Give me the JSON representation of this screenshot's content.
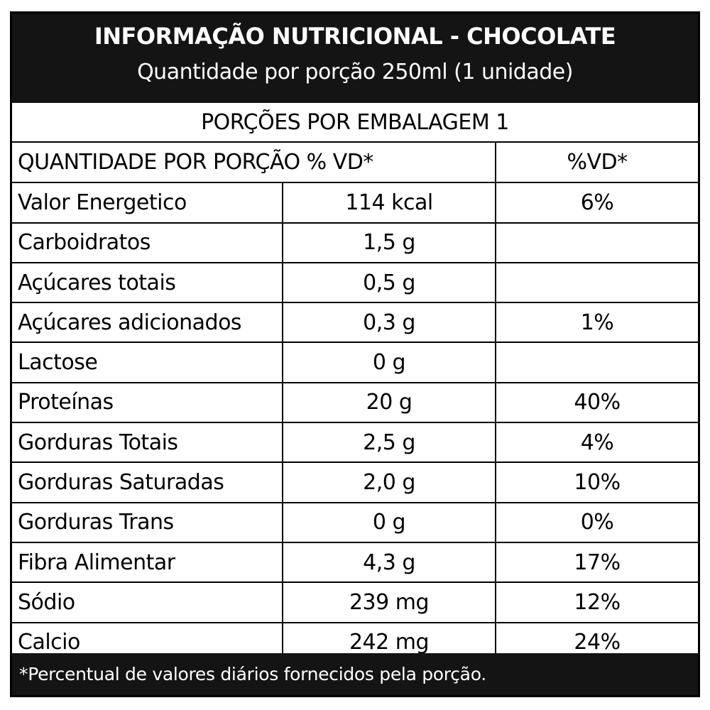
{
  "header": {
    "title": "INFORMAÇÃO NUTRICIONAL - CHOCOLATE",
    "subtitle": "Quantidade por porção 250ml (1 unidade)"
  },
  "portions_line": "PORÇÕES POR EMBALAGEM 1",
  "table": {
    "header_left": "QUANTIDADE POR PORÇÃO % VD*",
    "header_right": "%VD*",
    "rows": [
      {
        "name": "Valor Energetico",
        "qty": "114 kcal",
        "vd": "6%"
      },
      {
        "name": "Carboidratos",
        "qty": "1,5 g",
        "vd": ""
      },
      {
        "name": "Açúcares totais",
        "qty": "0,5 g",
        "vd": ""
      },
      {
        "name": "Açúcares adicionados",
        "qty": "0,3 g",
        "vd": "1%"
      },
      {
        "name": "Lactose",
        "qty": "0 g",
        "vd": ""
      },
      {
        "name": "Proteínas",
        "qty": "20 g",
        "vd": "40%"
      },
      {
        "name": "Gorduras Totais",
        "qty": "2,5 g",
        "vd": "4%"
      },
      {
        "name": "Gorduras Saturadas",
        "qty": "2,0 g",
        "vd": "10%"
      },
      {
        "name": "Gorduras Trans",
        "qty": "0 g",
        "vd": "0%"
      },
      {
        "name": "Fibra Alimentar",
        "qty": "4,3 g",
        "vd": "17%"
      },
      {
        "name": "Sódio",
        "qty": "239 mg",
        "vd": "12%"
      },
      {
        "name": "Calcio",
        "qty": "242 mg",
        "vd": "24%"
      }
    ]
  },
  "footer": "*Percentual de valores diários fornecidos pela porção."
}
